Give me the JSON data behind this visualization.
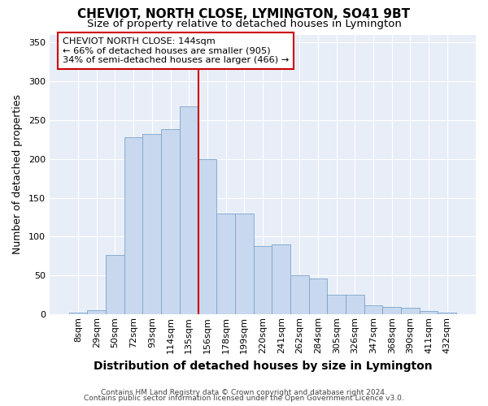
{
  "title": "CHEVIOT, NORTH CLOSE, LYMINGTON, SO41 9BT",
  "subtitle": "Size of property relative to detached houses in Lymington",
  "xlabel": "Distribution of detached houses by size in Lymington",
  "ylabel": "Number of detached properties",
  "categories": [
    "8sqm",
    "29sqm",
    "50sqm",
    "72sqm",
    "93sqm",
    "114sqm",
    "135sqm",
    "156sqm",
    "178sqm",
    "199sqm",
    "220sqm",
    "241sqm",
    "262sqm",
    "284sqm",
    "305sqm",
    "326sqm",
    "347sqm",
    "368sqm",
    "390sqm",
    "411sqm",
    "432sqm"
  ],
  "bar_values": [
    2,
    6,
    76,
    228,
    232,
    238,
    268,
    200,
    130,
    130,
    88,
    90,
    50,
    46,
    25,
    25,
    12,
    10,
    9,
    4,
    2
  ],
  "bar_color": "#c8d8ee",
  "bar_edge_color": "#7aa4cc",
  "vline_x": 6.5,
  "vline_color": "#cc0000",
  "annotation_title": "CHEVIOT NORTH CLOSE: 144sqm",
  "annotation_line1": "← 66% of detached houses are smaller (905)",
  "annotation_line2": "34% of semi-detached houses are larger (466) →",
  "annotation_box_facecolor": "#ffffff",
  "annotation_box_edgecolor": "#cc0000",
  "bg_color": "#e8eef8",
  "grid_color": "#ffffff",
  "ylim": [
    0,
    360
  ],
  "yticks": [
    0,
    50,
    100,
    150,
    200,
    250,
    300,
    350
  ],
  "footer1": "Contains HM Land Registry data © Crown copyright and database right 2024.",
  "footer2": "Contains public sector information licensed under the Open Government Licence v3.0.",
  "title_fontsize": 11,
  "subtitle_fontsize": 9.5,
  "xlabel_fontsize": 10,
  "ylabel_fontsize": 9,
  "tick_fontsize": 8,
  "footer_fontsize": 6.5
}
